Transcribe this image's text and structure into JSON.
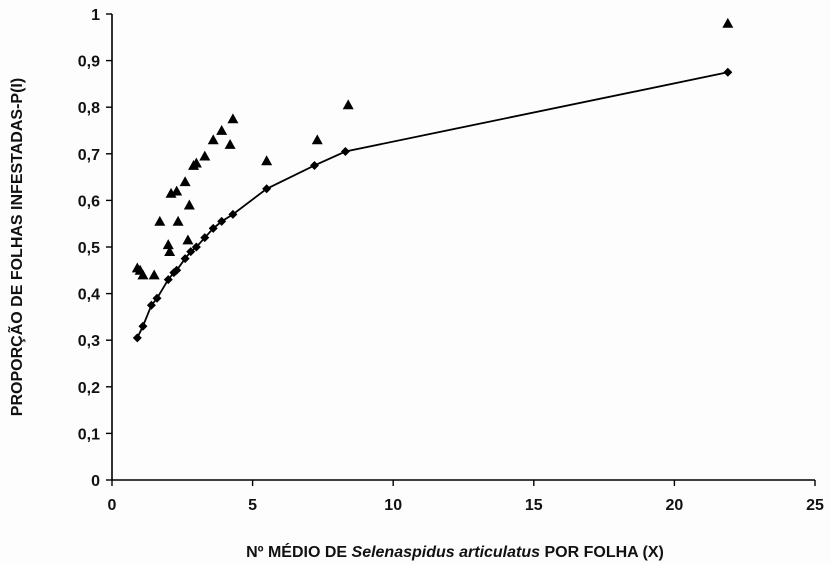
{
  "chart_data": {
    "type": "scatter",
    "xlabel_parts": [
      {
        "text": "Nº MÉDIO DE ",
        "italic": false
      },
      {
        "text": "Selenaspidus articulatus",
        "italic": true
      },
      {
        "text": " POR FOLHA (X)",
        "italic": false
      }
    ],
    "ylabel": "PROPORÇÃO DE FOLHAS INFESTADAS-P(I)",
    "xlim": [
      0,
      25
    ],
    "ylim": [
      0,
      1
    ],
    "x_ticks": [
      0,
      5,
      10,
      15,
      20,
      25
    ],
    "x_tick_labels": [
      "0",
      "5",
      "10",
      "15",
      "20",
      "25"
    ],
    "y_ticks": [
      0,
      0.1,
      0.2,
      0.3,
      0.4,
      0.5,
      0.6,
      0.7,
      0.8,
      0.9,
      1
    ],
    "y_tick_labels": [
      "0",
      "0,1",
      "0,2",
      "0,3",
      "0,4",
      "0,5",
      "0,6",
      "0,7",
      "0,8",
      "0,9",
      "1"
    ],
    "grid": false,
    "legend": "none",
    "series": [
      {
        "marker": "triangle",
        "style": "points",
        "color": "#000000",
        "points": [
          {
            "x": 0.9,
            "y": 0.455
          },
          {
            "x": 1.0,
            "y": 0.45
          },
          {
            "x": 1.1,
            "y": 0.44
          },
          {
            "x": 1.5,
            "y": 0.44
          },
          {
            "x": 1.7,
            "y": 0.555
          },
          {
            "x": 2.0,
            "y": 0.505
          },
          {
            "x": 2.05,
            "y": 0.49
          },
          {
            "x": 2.1,
            "y": 0.615
          },
          {
            "x": 2.3,
            "y": 0.62
          },
          {
            "x": 2.35,
            "y": 0.555
          },
          {
            "x": 2.6,
            "y": 0.64
          },
          {
            "x": 2.7,
            "y": 0.515
          },
          {
            "x": 2.75,
            "y": 0.59
          },
          {
            "x": 2.9,
            "y": 0.675
          },
          {
            "x": 3.0,
            "y": 0.68
          },
          {
            "x": 3.3,
            "y": 0.695
          },
          {
            "x": 3.6,
            "y": 0.73
          },
          {
            "x": 3.9,
            "y": 0.75
          },
          {
            "x": 4.2,
            "y": 0.72
          },
          {
            "x": 4.3,
            "y": 0.775
          },
          {
            "x": 5.5,
            "y": 0.685
          },
          {
            "x": 7.3,
            "y": 0.73
          },
          {
            "x": 8.4,
            "y": 0.805
          },
          {
            "x": 21.9,
            "y": 0.98
          }
        ]
      },
      {
        "marker": "diamond",
        "style": "line+points",
        "color": "#000000",
        "points": [
          {
            "x": 0.9,
            "y": 0.305
          },
          {
            "x": 1.1,
            "y": 0.33
          },
          {
            "x": 1.4,
            "y": 0.375
          },
          {
            "x": 1.6,
            "y": 0.39
          },
          {
            "x": 2.0,
            "y": 0.43
          },
          {
            "x": 2.2,
            "y": 0.445
          },
          {
            "x": 2.3,
            "y": 0.45
          },
          {
            "x": 2.6,
            "y": 0.475
          },
          {
            "x": 2.8,
            "y": 0.49
          },
          {
            "x": 3.0,
            "y": 0.5
          },
          {
            "x": 3.3,
            "y": 0.52
          },
          {
            "x": 3.6,
            "y": 0.54
          },
          {
            "x": 3.9,
            "y": 0.555
          },
          {
            "x": 4.3,
            "y": 0.57
          },
          {
            "x": 5.5,
            "y": 0.625
          },
          {
            "x": 7.2,
            "y": 0.675
          },
          {
            "x": 8.3,
            "y": 0.705
          },
          {
            "x": 21.9,
            "y": 0.875
          }
        ]
      }
    ]
  }
}
